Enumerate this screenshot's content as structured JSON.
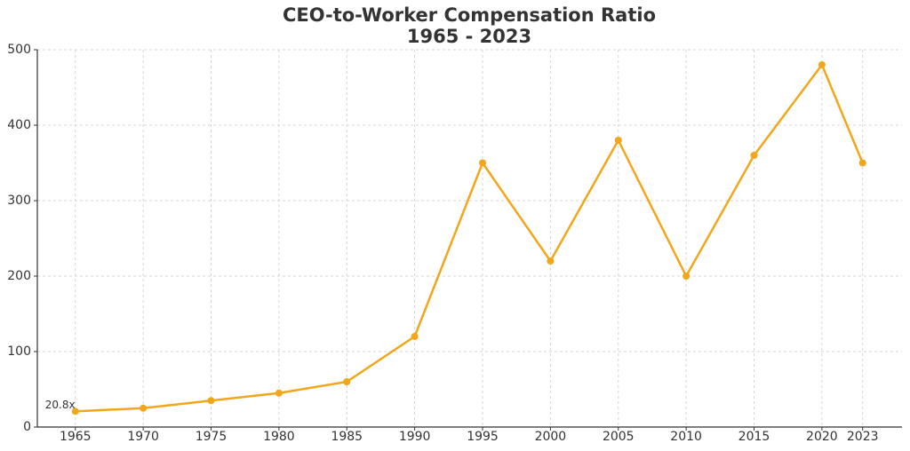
{
  "chart_data": {
    "type": "line",
    "title": "CEO-to-Worker Compensation Ratio",
    "subtitle": "1965 - 2023",
    "x": [
      1965,
      1970,
      1975,
      1980,
      1985,
      1990,
      1995,
      2000,
      2005,
      2010,
      2015,
      2020,
      2023
    ],
    "series": [
      {
        "color": "#f2a71b",
        "values": [
          20.8,
          25,
          35,
          45,
          60,
          120,
          350,
          220,
          380,
          200,
          360,
          480,
          350
        ],
        "value_labels": [
          "20.8x",
          null,
          null,
          null,
          null,
          null,
          null,
          null,
          null,
          null,
          null,
          null,
          null
        ]
      }
    ],
    "xlim": [
      1962.2,
      2025.9
    ],
    "xticks": [
      1965,
      1970,
      1975,
      1980,
      1985,
      1990,
      1995,
      2000,
      2005,
      2010,
      2015,
      2020,
      2023
    ],
    "ylim": [
      0,
      500
    ],
    "yticks": [
      0,
      100,
      200,
      300,
      400,
      500
    ],
    "grid": true
  }
}
